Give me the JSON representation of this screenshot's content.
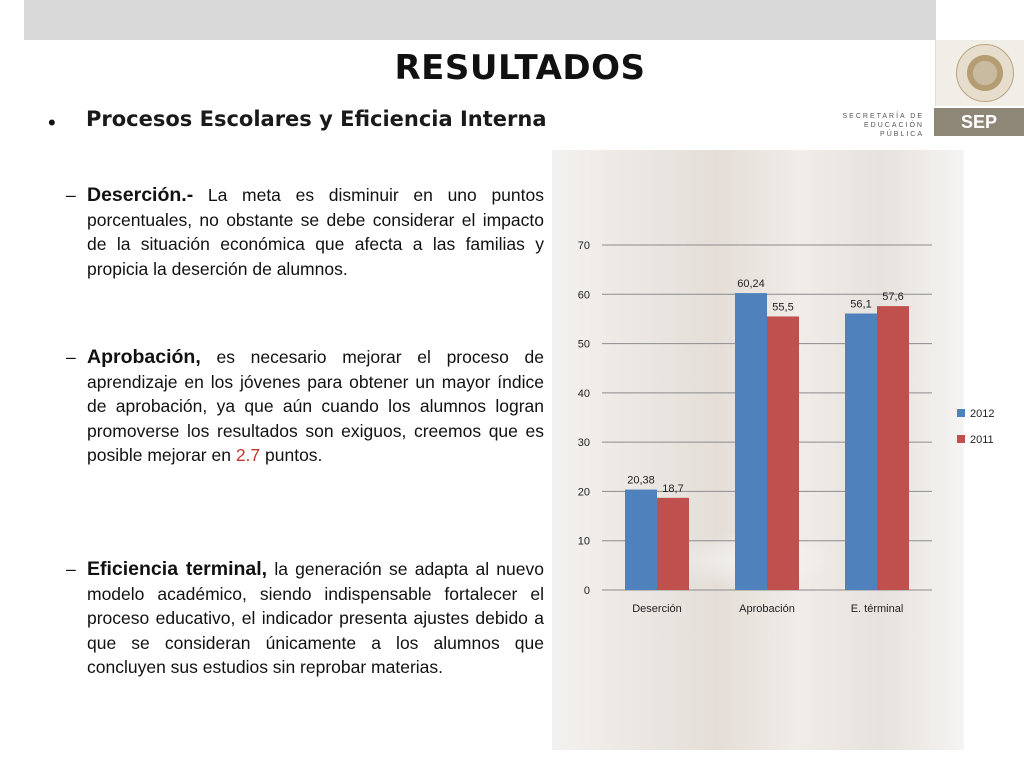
{
  "title": "RESULTADOS",
  "bullet": "•",
  "subtitle": "Procesos Escolares y Eficiencia Interna",
  "logo": {
    "ministry_text": "SECRETARÍA DE EDUCACIÓN PÚBLICA",
    "badge": "SEP"
  },
  "paragraphs": [
    {
      "dash": "–",
      "lead": "Deserción.-",
      "text": " La meta es disminuir en  uno puntos porcentuales, no obstante se debe considerar el impacto de la situación económica que afecta a las familias y propicia la deserción de alumnos.",
      "pre_accent": "",
      "accent": "",
      "post_accent": ""
    },
    {
      "dash": "–",
      "lead": "Aprobación,",
      "text": " es necesario mejorar el proceso de aprendizaje en los jóvenes para obtener un mayor índice de aprobación, ya que aún cuando los alumnos logran promoverse los resultados son exiguos, creemos que es posible mejorar  en ",
      "accent": "2.7",
      "post_accent": " puntos."
    },
    {
      "dash": "–",
      "lead": "Eficiencia terminal,",
      "text": " la generación se adapta al nuevo modelo académico, siendo indispensable fortalecer el proceso educativo, el indicador presenta ajustes debido a que se consideran únicamente a los alumnos que concluyen sus estudios sin reprobar materias.",
      "accent": "",
      "post_accent": ""
    }
  ],
  "chart_data": {
    "type": "bar",
    "categories": [
      "Deserción",
      "Aprobación",
      "E. términal"
    ],
    "series": [
      {
        "name": "2012",
        "values": [
          20.38,
          60.24,
          56.1
        ],
        "labels": [
          "20,38",
          "60,24",
          "56,1"
        ],
        "color": "#4f81bd"
      },
      {
        "name": "2011",
        "values": [
          18.7,
          55.5,
          57.6
        ],
        "labels": [
          "18,7",
          "55,5",
          "57,6"
        ],
        "color": "#c0504d"
      }
    ],
    "ylim": [
      0,
      70
    ],
    "yticks": [
      0,
      10,
      20,
      30,
      40,
      50,
      60,
      70
    ],
    "grid": true,
    "legend": "right"
  }
}
